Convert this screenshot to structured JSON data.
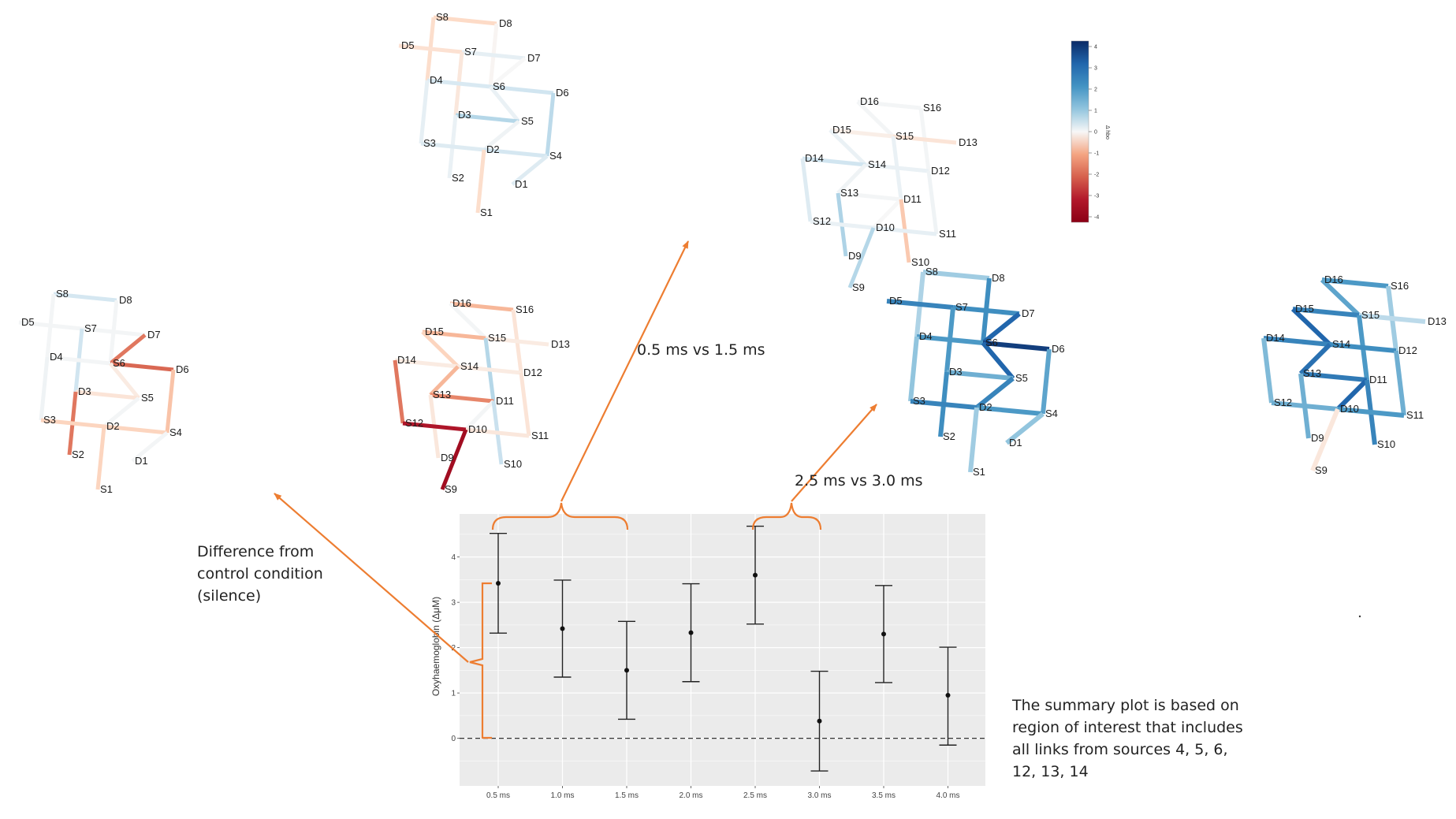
{
  "maps": [
    {
      "id": "map-1",
      "optodes": [
        {
          "label": "S8",
          "x": 0,
          "y": 0
        },
        {
          "label": "D8",
          "x": 2,
          "y": 0
        },
        {
          "label": "D5",
          "x": -1,
          "y": 1
        },
        {
          "label": "S7",
          "x": 1,
          "y": 1
        },
        {
          "label": "D7",
          "x": 3,
          "y": 1
        },
        {
          "label": "D4",
          "x": 0,
          "y": 2
        },
        {
          "label": "S6",
          "x": 2,
          "y": 2
        },
        {
          "label": "D6",
          "x": 4,
          "y": 2
        },
        {
          "label": "D3",
          "x": 1,
          "y": 3
        },
        {
          "label": "S5",
          "x": 3,
          "y": 3
        },
        {
          "label": "S3",
          "x": 0,
          "y": 4
        },
        {
          "label": "D2",
          "x": 2,
          "y": 4
        },
        {
          "label": "S4",
          "x": 4,
          "y": 4
        },
        {
          "label": "S2",
          "x": 1,
          "y": 5
        },
        {
          "label": "D1",
          "x": 3,
          "y": 5
        },
        {
          "label": "S1",
          "x": 2,
          "y": 6
        }
      ],
      "links": [
        [
          "S8",
          "D8",
          0.9
        ],
        [
          "S8",
          "D4",
          0.8
        ],
        [
          "D8",
          "S6",
          0.1
        ],
        [
          "D5",
          "S7",
          0.7
        ],
        [
          "S7",
          "D7",
          -0.4
        ],
        [
          "S7",
          "D3",
          0.5
        ],
        [
          "D7",
          "S6",
          0.0
        ],
        [
          "D4",
          "S6",
          -0.7
        ],
        [
          "S6",
          "D6",
          -0.9
        ],
        [
          "D4",
          "S3",
          -0.4
        ],
        [
          "S6",
          "S5",
          -0.3
        ],
        [
          "D6",
          "S4",
          -1.2
        ],
        [
          "D3",
          "S5",
          -1.3
        ],
        [
          "D3",
          "S2",
          -0.3
        ],
        [
          "S5",
          "D2",
          -0.2
        ],
        [
          "S3",
          "D2",
          -0.6
        ],
        [
          "D2",
          "S4",
          -0.8
        ],
        [
          "D2",
          "S1",
          0.8
        ],
        [
          "S4",
          "D1",
          -0.6
        ]
      ]
    },
    {
      "id": "map-2",
      "optodes": [
        {
          "label": "D16",
          "x": 2,
          "y": 0
        },
        {
          "label": "S16",
          "x": 4,
          "y": 0
        },
        {
          "label": "D15",
          "x": 1,
          "y": 1
        },
        {
          "label": "S15",
          "x": 3,
          "y": 1
        },
        {
          "label": "D13",
          "x": 5,
          "y": 1
        },
        {
          "label": "D14",
          "x": 0,
          "y": 2
        },
        {
          "label": "S14",
          "x": 2,
          "y": 2
        },
        {
          "label": "D12",
          "x": 4,
          "y": 2
        },
        {
          "label": "S13",
          "x": 1,
          "y": 3
        },
        {
          "label": "D11",
          "x": 3,
          "y": 3
        },
        {
          "label": "S12",
          "x": 0,
          "y": 4
        },
        {
          "label": "D10",
          "x": 2,
          "y": 4
        },
        {
          "label": "S11",
          "x": 4,
          "y": 4
        },
        {
          "label": "D9",
          "x": 1,
          "y": 5
        },
        {
          "label": "S10",
          "x": 3,
          "y": 5
        },
        {
          "label": "S9",
          "x": 1,
          "y": 6
        }
      ],
      "links": [
        [
          "D16",
          "S16",
          -0.1
        ],
        [
          "D16",
          "S15",
          -0.1
        ],
        [
          "S16",
          "D12",
          -0.1
        ],
        [
          "D15",
          "S15",
          0.3
        ],
        [
          "S15",
          "D13",
          0.6
        ],
        [
          "D15",
          "S14",
          -0.3
        ],
        [
          "S15",
          "D11",
          -0.3
        ],
        [
          "D14",
          "S14",
          -0.9
        ],
        [
          "S14",
          "D12",
          -0.3
        ],
        [
          "D14",
          "S12",
          -0.6
        ],
        [
          "S14",
          "S13",
          -0.2
        ],
        [
          "D12",
          "S11",
          -0.2
        ],
        [
          "S13",
          "D11",
          -0.1
        ],
        [
          "S13",
          "D9",
          -1.4
        ],
        [
          "D11",
          "D10",
          0.0
        ],
        [
          "D11",
          "S10",
          1.2
        ],
        [
          "S12",
          "D10",
          -0.3
        ],
        [
          "D10",
          "S11",
          -0.4
        ],
        [
          "D10",
          "S9",
          -1.3
        ]
      ]
    },
    {
      "id": "map-3",
      "optodes": [
        {
          "label": "S8",
          "x": 0,
          "y": 0
        },
        {
          "label": "D8",
          "x": 2,
          "y": 0
        },
        {
          "label": "D5",
          "x": -1,
          "y": 1
        },
        {
          "label": "S7",
          "x": 1,
          "y": 1
        },
        {
          "label": "D7",
          "x": 3,
          "y": 1
        },
        {
          "label": "D4",
          "x": 0,
          "y": 2
        },
        {
          "label": "S6",
          "x": 2,
          "y": 2
        },
        {
          "label": "D6",
          "x": 4,
          "y": 2
        },
        {
          "label": "D3",
          "x": 1,
          "y": 3
        },
        {
          "label": "S5",
          "x": 3,
          "y": 3
        },
        {
          "label": "S3",
          "x": 0,
          "y": 4
        },
        {
          "label": "D2",
          "x": 2,
          "y": 4
        },
        {
          "label": "S4",
          "x": 4,
          "y": 4
        },
        {
          "label": "S2",
          "x": 1,
          "y": 5
        },
        {
          "label": "D1",
          "x": 3,
          "y": 5
        },
        {
          "label": "S1",
          "x": 2,
          "y": 6
        }
      ],
      "links": [
        [
          "S8",
          "D8",
          -0.8
        ],
        [
          "S8",
          "D4",
          -0.1
        ],
        [
          "D8",
          "S6",
          -0.1
        ],
        [
          "D5",
          "S7",
          -0.1
        ],
        [
          "S7",
          "D7",
          -0.1
        ],
        [
          "S7",
          "D3",
          -0.9
        ],
        [
          "D7",
          "S6",
          2.4
        ],
        [
          "D4",
          "S6",
          -0.1
        ],
        [
          "S6",
          "D6",
          2.6
        ],
        [
          "D4",
          "S3",
          -0.2
        ],
        [
          "S6",
          "S5",
          0.4
        ],
        [
          "D6",
          "S4",
          1.3
        ],
        [
          "D3",
          "S5",
          0.6
        ],
        [
          "D3",
          "S2",
          2.4
        ],
        [
          "S5",
          "D2",
          -0.1
        ],
        [
          "S3",
          "D2",
          1.0
        ],
        [
          "D2",
          "S4",
          1.0
        ],
        [
          "D2",
          "S1",
          1.0
        ],
        [
          "S4",
          "D1",
          -0.1
        ]
      ]
    },
    {
      "id": "map-4",
      "optodes": [
        {
          "label": "D16",
          "x": 2,
          "y": 0
        },
        {
          "label": "S16",
          "x": 4,
          "y": 0
        },
        {
          "label": "D15",
          "x": 1,
          "y": 1
        },
        {
          "label": "S15",
          "x": 3,
          "y": 1
        },
        {
          "label": "D13",
          "x": 5,
          "y": 1
        },
        {
          "label": "D14",
          "x": 0,
          "y": 2
        },
        {
          "label": "S14",
          "x": 2,
          "y": 2
        },
        {
          "label": "D12",
          "x": 4,
          "y": 2
        },
        {
          "label": "S13",
          "x": 1,
          "y": 3
        },
        {
          "label": "D11",
          "x": 3,
          "y": 3
        },
        {
          "label": "S12",
          "x": 0,
          "y": 4
        },
        {
          "label": "D10",
          "x": 2,
          "y": 4
        },
        {
          "label": "S11",
          "x": 4,
          "y": 4
        },
        {
          "label": "D9",
          "x": 1,
          "y": 5
        },
        {
          "label": "S10",
          "x": 3,
          "y": 5
        },
        {
          "label": "S9",
          "x": 1,
          "y": 6
        }
      ],
      "links": [
        [
          "D16",
          "S16",
          1.5
        ],
        [
          "D16",
          "S15",
          -0.1
        ],
        [
          "S16",
          "D12",
          0.6
        ],
        [
          "D15",
          "S15",
          1.5
        ],
        [
          "S15",
          "D13",
          0.4
        ],
        [
          "D15",
          "S14",
          1.0
        ],
        [
          "S15",
          "D11",
          -1.3
        ],
        [
          "D14",
          "S14",
          0.4
        ],
        [
          "S14",
          "D12",
          0.4
        ],
        [
          "D14",
          "S12",
          2.4
        ],
        [
          "S14",
          "S13",
          1.5
        ],
        [
          "D12",
          "S11",
          0.6
        ],
        [
          "S13",
          "D11",
          2.2
        ],
        [
          "S13",
          "D9",
          0.5
        ],
        [
          "D11",
          "D10",
          -0.1
        ],
        [
          "D11",
          "S10",
          -1.0
        ],
        [
          "S12",
          "D10",
          3.7
        ],
        [
          "D10",
          "S11",
          0.5
        ],
        [
          "D10",
          "S9",
          4.0
        ]
      ]
    },
    {
      "id": "map-5",
      "optodes": [
        {
          "label": "S8",
          "x": 0,
          "y": 0
        },
        {
          "label": "D8",
          "x": 2,
          "y": 0
        },
        {
          "label": "D5",
          "x": -1,
          "y": 1
        },
        {
          "label": "S7",
          "x": 1,
          "y": 1
        },
        {
          "label": "D7",
          "x": 3,
          "y": 1
        },
        {
          "label": "D4",
          "x": 0,
          "y": 2
        },
        {
          "label": "S6",
          "x": 2,
          "y": 2
        },
        {
          "label": "D6",
          "x": 4,
          "y": 2
        },
        {
          "label": "D3",
          "x": 1,
          "y": 3
        },
        {
          "label": "S5",
          "x": 3,
          "y": 3
        },
        {
          "label": "S3",
          "x": 0,
          "y": 4
        },
        {
          "label": "D2",
          "x": 2,
          "y": 4
        },
        {
          "label": "S4",
          "x": 4,
          "y": 4
        },
        {
          "label": "S2",
          "x": 1,
          "y": 5
        },
        {
          "label": "D1",
          "x": 3,
          "y": 5
        },
        {
          "label": "S1",
          "x": 2,
          "y": 6
        }
      ],
      "links": [
        [
          "S8",
          "D8",
          -1.6
        ],
        [
          "S8",
          "D4",
          -1.4
        ],
        [
          "D8",
          "S6",
          -2.8
        ],
        [
          "D5",
          "S7",
          -3.0
        ],
        [
          "S7",
          "D7",
          -2.8
        ],
        [
          "S7",
          "D3",
          -2.6
        ],
        [
          "D7",
          "S6",
          -3.6
        ],
        [
          "D4",
          "S6",
          -2.6
        ],
        [
          "S6",
          "D6",
          -4.2
        ],
        [
          "D4",
          "S3",
          -1.8
        ],
        [
          "S6",
          "S5",
          -3.6
        ],
        [
          "D6",
          "S4",
          -2.4
        ],
        [
          "D3",
          "S5",
          -2.2
        ],
        [
          "D3",
          "S2",
          -2.8
        ],
        [
          "S5",
          "D2",
          -3.0
        ],
        [
          "S3",
          "D2",
          -3.0
        ],
        [
          "D2",
          "S4",
          -2.6
        ],
        [
          "D2",
          "S1",
          -1.6
        ],
        [
          "S4",
          "D1",
          -1.8
        ]
      ]
    },
    {
      "id": "map-6",
      "optodes": [
        {
          "label": "D16",
          "x": 2,
          "y": 0
        },
        {
          "label": "S16",
          "x": 4,
          "y": 0
        },
        {
          "label": "D15",
          "x": 1,
          "y": 1
        },
        {
          "label": "S15",
          "x": 3,
          "y": 1
        },
        {
          "label": "D13",
          "x": 5,
          "y": 1
        },
        {
          "label": "D14",
          "x": 0,
          "y": 2
        },
        {
          "label": "S14",
          "x": 2,
          "y": 2
        },
        {
          "label": "D12",
          "x": 4,
          "y": 2
        },
        {
          "label": "S13",
          "x": 1,
          "y": 3
        },
        {
          "label": "D11",
          "x": 3,
          "y": 3
        },
        {
          "label": "S12",
          "x": 0,
          "y": 4
        },
        {
          "label": "D10",
          "x": 2,
          "y": 4
        },
        {
          "label": "S11",
          "x": 4,
          "y": 4
        },
        {
          "label": "D9",
          "x": 1,
          "y": 5
        },
        {
          "label": "S10",
          "x": 3,
          "y": 5
        },
        {
          "label": "S9",
          "x": 1,
          "y": 6
        }
      ],
      "links": [
        [
          "D16",
          "S16",
          -2.6
        ],
        [
          "D16",
          "S15",
          -2.4
        ],
        [
          "S16",
          "D12",
          -1.6
        ],
        [
          "D15",
          "S15",
          -3.0
        ],
        [
          "S15",
          "D13",
          -1.2
        ],
        [
          "D15",
          "S14",
          -3.6
        ],
        [
          "S15",
          "D11",
          -2.6
        ],
        [
          "D14",
          "S14",
          -3.0
        ],
        [
          "S14",
          "D12",
          -2.8
        ],
        [
          "D14",
          "S12",
          -2.0
        ],
        [
          "S14",
          "S13",
          -3.4
        ],
        [
          "D12",
          "S11",
          -2.2
        ],
        [
          "S13",
          "D11",
          -3.2
        ],
        [
          "S13",
          "D9",
          -2.2
        ],
        [
          "D11",
          "D10",
          -3.6
        ],
        [
          "D11",
          "S10",
          -3.0
        ],
        [
          "S12",
          "D10",
          -2.2
        ],
        [
          "D10",
          "S11",
          -2.6
        ],
        [
          "D10",
          "S9",
          0.5
        ]
      ]
    }
  ],
  "colorbar": {
    "ticks": [
      "4",
      "3",
      "2",
      "1",
      "0",
      "-1",
      "-2",
      "-3",
      "-4"
    ],
    "label": "Δ hbo",
    "colors": [
      "#0a2a66",
      "#2166ac",
      "#4393c3",
      "#92c5de",
      "#f7f7f7",
      "#f4a582",
      "#d6604d",
      "#b2182b",
      "#8b0015"
    ]
  },
  "annotations": {
    "comparison_1": "0.5 ms vs 1.5 ms",
    "comparison_2": "2.5 ms vs 3.0 ms",
    "control_line1": "Difference from",
    "control_line2": "control condition",
    "control_line3": "(silence)",
    "summary_line1": "The summary plot is based on",
    "summary_line2": "region of interest that includes",
    "summary_line3": "all links from sources 4, 5, 6,",
    "summary_line4": "12, 13, 14",
    "arrow_color": "#ed7d31"
  },
  "chart_data": {
    "type": "scatter",
    "categories": [
      "0.5 ms",
      "1.0 ms",
      "1.5 ms",
      "2.0 ms",
      "2.5 ms",
      "3.0 ms",
      "3.5 ms",
      "4.0 ms"
    ],
    "values": [
      3.42,
      2.42,
      1.5,
      2.33,
      3.6,
      0.38,
      2.3,
      0.95
    ],
    "lower": [
      2.32,
      1.35,
      0.42,
      1.25,
      2.52,
      -0.72,
      1.23,
      -0.15
    ],
    "upper": [
      4.52,
      3.49,
      2.58,
      3.41,
      4.68,
      1.48,
      3.37,
      2.01
    ],
    "ylabel": "Oxyhaemoglobin (ΔμM)",
    "yticks": [
      "0",
      "1",
      "2",
      "3",
      "4"
    ],
    "ylim": [
      -1.05,
      4.95
    ],
    "reference_line": 0,
    "grid": true
  }
}
